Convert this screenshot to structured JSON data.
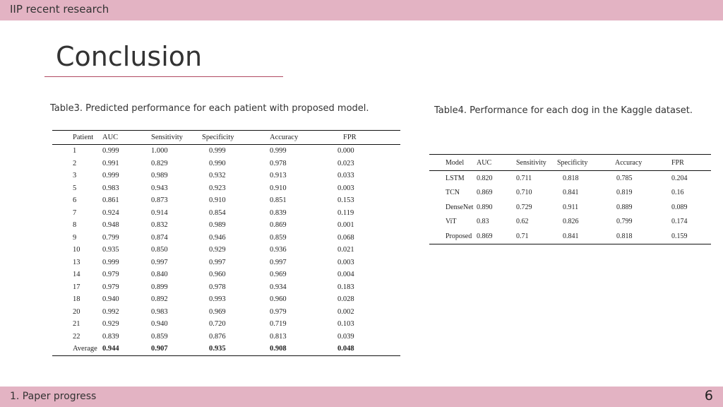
{
  "header": {
    "title": "IIP recent research"
  },
  "slide": {
    "title": "Conclusion"
  },
  "table3": {
    "caption": "Table3. Predicted performance for each patient with proposed model.",
    "columns": [
      "Patient",
      "AUC",
      "Sensitivity",
      "Specificity",
      "Accuracy",
      "FPR"
    ],
    "rows": [
      [
        "1",
        "0.999",
        "1.000",
        "0.999",
        "0.999",
        "0.000"
      ],
      [
        "2",
        "0.991",
        "0.829",
        "0.990",
        "0.978",
        "0.023"
      ],
      [
        "3",
        "0.999",
        "0.989",
        "0.932",
        "0.913",
        "0.033"
      ],
      [
        "5",
        "0.983",
        "0.943",
        "0.923",
        "0.910",
        "0.003"
      ],
      [
        "6",
        "0.861",
        "0.873",
        "0.910",
        "0.851",
        "0.153"
      ],
      [
        "7",
        "0.924",
        "0.914",
        "0.854",
        "0.839",
        "0.119"
      ],
      [
        "8",
        "0.948",
        "0.832",
        "0.989",
        "0.869",
        "0.001"
      ],
      [
        "9",
        "0.799",
        "0.874",
        "0.946",
        "0.859",
        "0.068"
      ],
      [
        "10",
        "0.935",
        "0.850",
        "0.929",
        "0.936",
        "0.021"
      ],
      [
        "13",
        "0.999",
        "0.997",
        "0.997",
        "0.997",
        "0.003"
      ],
      [
        "14",
        "0.979",
        "0.840",
        "0.960",
        "0.969",
        "0.004"
      ],
      [
        "17",
        "0.979",
        "0.899",
        "0.978",
        "0.934",
        "0.183"
      ],
      [
        "18",
        "0.940",
        "0.892",
        "0.993",
        "0.960",
        "0.028"
      ],
      [
        "20",
        "0.992",
        "0.983",
        "0.969",
        "0.979",
        "0.002"
      ],
      [
        "21",
        "0.929",
        "0.940",
        "0.720",
        "0.719",
        "0.103"
      ],
      [
        "22",
        "0.839",
        "0.859",
        "0.876",
        "0.813",
        "0.039"
      ]
    ],
    "average": [
      "Average",
      "0.944",
      "0.907",
      "0.935",
      "0.908",
      "0.048"
    ]
  },
  "table4": {
    "caption": "Table4. Performance for each dog in the Kaggle dataset.",
    "columns": [
      "Model",
      "AUC",
      "Sensitivity",
      "Specificity",
      "Accuracy",
      "FPR"
    ],
    "rows": [
      [
        "LSTM",
        "0.820",
        "0.711",
        "0.818",
        "0.785",
        "0.204"
      ],
      [
        "TCN",
        "0.869",
        "0.710",
        "0.841",
        "0.819",
        "0.16"
      ],
      [
        "DenseNet",
        "0.890",
        "0.729",
        "0.911",
        "0.889",
        "0.089"
      ],
      [
        "ViT",
        "0.83",
        "0.62",
        "0.826",
        "0.799",
        "0.174"
      ],
      [
        "Proposed",
        "0.869",
        "0.71",
        "0.841",
        "0.818",
        "0.159"
      ]
    ]
  },
  "footer": {
    "section": "1. Paper progress",
    "page_number": "6"
  },
  "colors": {
    "bar": "#e3b3c3",
    "title_rule": "#b04a62"
  }
}
